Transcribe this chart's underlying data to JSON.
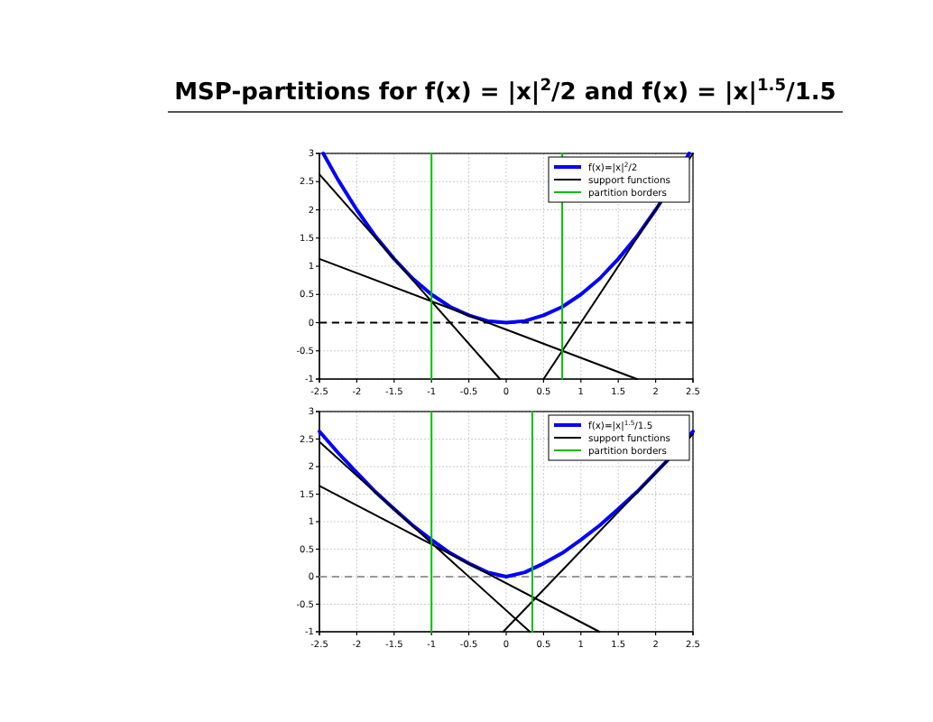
{
  "chart_data": [
    {
      "type": "line",
      "title": "MSP-partitions for f(x) = |x|$^{2}$/2 and f(x) = |x|$^{1.5}$/1.5",
      "xlim": [
        -2.5,
        2.5
      ],
      "ylim": [
        -1,
        3
      ],
      "xticks": [
        -2.5,
        -2,
        -1.5,
        -1,
        -0.5,
        0,
        0.5,
        1,
        1.5,
        2,
        2.5
      ],
      "yticks": [
        -1,
        -0.5,
        0,
        0.5,
        1,
        1.5,
        2,
        2.5,
        3
      ],
      "grid": true,
      "legend": "top right",
      "series": [
        {
          "name": "f(x)=|x|$^{2}$/2",
          "color": "#0000ff",
          "x": [
            -2.449,
            -2.25,
            -2,
            -1.75,
            -1.5,
            -1.25,
            -1,
            -0.75,
            -0.5,
            -0.25,
            0,
            0.25,
            0.5,
            0.75,
            1,
            1.25,
            1.5,
            1.75,
            2,
            2.05,
            2.449
          ],
          "values": [
            3,
            2.53,
            2,
            1.53,
            1.13,
            0.78,
            0.5,
            0.28,
            0.13,
            0.03,
            0,
            0.03,
            0.13,
            0.28,
            0.5,
            0.78,
            1.13,
            1.53,
            2,
            2.1,
            3
          ]
        },
        {
          "name": "support functions",
          "color": "#000000",
          "x": [
            -2.5,
            -0.083,
            null,
            -2.5,
            1.75,
            null,
            0.5,
            2.5
          ],
          "values": [
            2.63,
            -1,
            null,
            1.13,
            -1,
            null,
            -1,
            3
          ]
        },
        {
          "name": "partition borders",
          "color": "#00c000",
          "x": [
            -1,
            -1,
            null,
            0.75,
            0.75
          ],
          "values": [
            -1,
            3,
            null,
            -1,
            3
          ]
        }
      ],
      "ref_lines": [
        {
          "axis": "y",
          "value": 0,
          "color": "#000000",
          "line_style": "dashed"
        }
      ]
    },
    {
      "type": "line",
      "xlim": [
        -2.5,
        2.5
      ],
      "ylim": [
        -1,
        3
      ],
      "xticks": [
        -2.5,
        -2,
        -1.5,
        -1,
        -0.5,
        0,
        0.5,
        1,
        1.5,
        2,
        2.5
      ],
      "yticks": [
        -1,
        -0.5,
        0,
        0.5,
        1,
        1.5,
        2,
        2.5,
        3
      ],
      "grid": true,
      "legend": "top right",
      "series": [
        {
          "name": "f(x)=|x|$^{1.5}$/1.5",
          "color": "#0000ff",
          "x": [
            -2.5,
            -2.25,
            -2,
            -1.75,
            -1.5,
            -1.25,
            -1,
            -0.75,
            -0.5,
            -0.25,
            0,
            0.25,
            0.5,
            0.75,
            1,
            1.25,
            1.5,
            1.75,
            2,
            2.15,
            2.5
          ],
          "values": [
            2.64,
            2.25,
            1.89,
            1.54,
            1.23,
            0.93,
            0.67,
            0.43,
            0.24,
            0.08,
            0,
            0.08,
            0.24,
            0.43,
            0.67,
            0.93,
            1.23,
            1.54,
            1.89,
            2.1,
            2.64
          ]
        },
        {
          "name": "support functions",
          "color": "#000000",
          "x": [
            -2.5,
            0.317,
            null,
            -2.5,
            1.248,
            null,
            -0.04,
            2.5
          ],
          "values": [
            2.45,
            -1,
            null,
            1.65,
            -1,
            null,
            -1,
            2.59
          ]
        },
        {
          "name": "partition borders",
          "color": "#00c000",
          "x": [
            -1,
            -1,
            null,
            0.35,
            0.35
          ],
          "values": [
            -1,
            3,
            null,
            -1,
            3
          ]
        }
      ],
      "ref_lines": [
        {
          "axis": "y",
          "value": 0,
          "color": "#999999",
          "line_style": "dashed"
        }
      ]
    }
  ]
}
